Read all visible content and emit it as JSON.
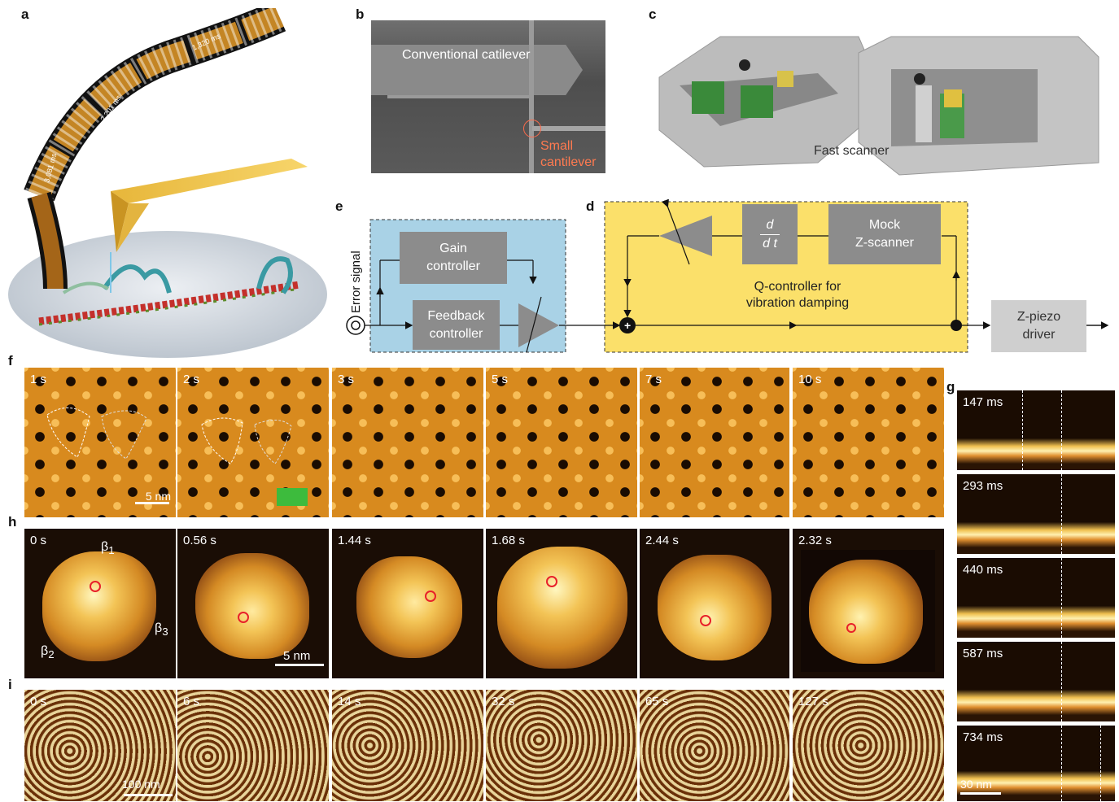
{
  "panel_labels": {
    "a": "a",
    "b": "b",
    "c": "c",
    "d": "d",
    "e": "e",
    "f": "f",
    "g": "g",
    "h": "h",
    "i": "i"
  },
  "a": {
    "film_times": [
      "1,320 ms",
      "2,201 ms",
      "3,081 ms"
    ]
  },
  "b": {
    "conventional": "Conventional catilever",
    "small_line1": "Small",
    "small_line2": "cantilever"
  },
  "c": {
    "label": "Fast scanner"
  },
  "e": {
    "error_signal": "Error signal",
    "gain": "Gain\ncontroller",
    "feedback": "Feedback\ncontroller"
  },
  "d": {
    "ddt_num": "d",
    "ddt_den": "d t",
    "mock": "Mock\nZ-scanner",
    "q_line1": "Q-controller for",
    "q_line2": "vibration damping",
    "plus": "+"
  },
  "zpiezo": "Z-piezo\ndriver",
  "f": {
    "times": [
      "1 s",
      "2 s",
      "3 s",
      "5 s",
      "7 s",
      "10 s"
    ],
    "scale": "5 nm"
  },
  "g": {
    "times": [
      "147 ms",
      "293 ms",
      "440 ms",
      "587 ms",
      "734 ms"
    ],
    "scale": "30 nm"
  },
  "h": {
    "times": [
      "0 s",
      "0.56 s",
      "1.44 s",
      "1.68 s",
      "2.44 s",
      "2.32 s"
    ],
    "scale": "5 nm",
    "beta1": "β",
    "beta1_sub": "1",
    "beta2": "β",
    "beta2_sub": "2",
    "beta3": "β",
    "beta3_sub": "3"
  },
  "i": {
    "times": [
      "0 s",
      "6 s",
      "14 s",
      "32 s",
      "65 s",
      "127 s"
    ],
    "scale": "100 nm"
  },
  "colors": {
    "yellow_box": "#fbe06a",
    "blue_box": "#a9d2e6",
    "grey_box": "#8c8c8c",
    "green_bar": "#3dbb3d",
    "red_marker": "#e8202a"
  }
}
